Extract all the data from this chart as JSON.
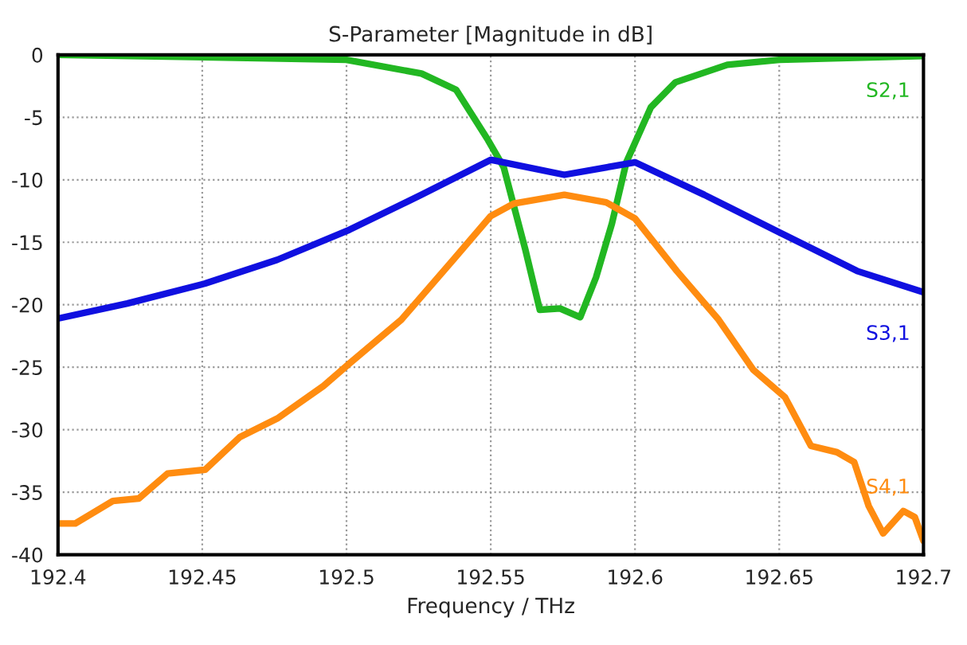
{
  "chart_data": {
    "type": "line",
    "title": "S-Parameter [Magnitude in dB]",
    "xlabel": "Frequency / THz",
    "xlim": [
      192.4,
      192.7
    ],
    "xticks": [
      {
        "value": 192.4,
        "label": "192.4"
      },
      {
        "value": 192.45,
        "label": "192.45"
      },
      {
        "value": 192.5,
        "label": "192.5"
      },
      {
        "value": 192.55,
        "label": "192.55"
      },
      {
        "value": 192.6,
        "label": "192.6"
      },
      {
        "value": 192.65,
        "label": "192.65"
      },
      {
        "value": 192.7,
        "label": "192.7"
      }
    ],
    "ylim": [
      -40,
      0
    ],
    "yticks": [
      -40,
      -35,
      -30,
      -25,
      -20,
      -15,
      -10,
      -5,
      0
    ],
    "grid": true,
    "legend": false,
    "line_style": "solid",
    "marker": "none",
    "series": [
      {
        "name": "S2,1",
        "color": "#22b722",
        "x": [
          192.4,
          192.454,
          192.5,
          192.526,
          192.538,
          192.549,
          192.5545,
          192.562,
          192.567,
          192.574,
          192.581,
          192.5865,
          192.592,
          192.597,
          192.6055,
          192.614,
          192.632,
          192.65,
          192.7
        ],
        "values": [
          0,
          -0.2,
          -0.4,
          -1.5,
          -2.8,
          -6.8,
          -9,
          -15.6,
          -20.4,
          -20.3,
          -21,
          -17.8,
          -13.5,
          -8.6,
          -4.2,
          -2.2,
          -0.8,
          -0.4,
          -0.1
        ]
      },
      {
        "name": "S3,1",
        "color": "#1010e0",
        "x": [
          192.4,
          192.424,
          192.451,
          192.476,
          192.501,
          192.526,
          192.55,
          192.5755,
          192.6,
          192.624,
          192.65,
          192.677,
          192.7
        ],
        "values": [
          -21.1,
          -19.9,
          -18.3,
          -16.4,
          -14,
          -11.2,
          -8.4,
          -9.6,
          -8.6,
          -11.2,
          -14.2,
          -17.3,
          -19
        ]
      },
      {
        "name": "S4,1",
        "color": "#ff8c10",
        "x": [
          192.4,
          192.406,
          192.419,
          192.428,
          192.438,
          192.451,
          192.463,
          192.476,
          192.492,
          192.501,
          192.519,
          192.537,
          192.55,
          192.558,
          192.5755,
          192.59,
          192.6,
          192.6145,
          192.629,
          192.641,
          192.652,
          192.661,
          192.67,
          192.676,
          192.681,
          192.686,
          192.693,
          192.697,
          192.7
        ],
        "values": [
          -37.5,
          -37.5,
          -35.7,
          -35.5,
          -33.5,
          -33.2,
          -30.6,
          -29.1,
          -26.5,
          -24.7,
          -21.2,
          -16.4,
          -12.9,
          -11.9,
          -11.2,
          -11.8,
          -13.1,
          -17.3,
          -21.2,
          -25.2,
          -27.4,
          -31.3,
          -31.8,
          -32.6,
          -36.1,
          -38.3,
          -36.5,
          -37,
          -38.9
        ]
      }
    ]
  }
}
